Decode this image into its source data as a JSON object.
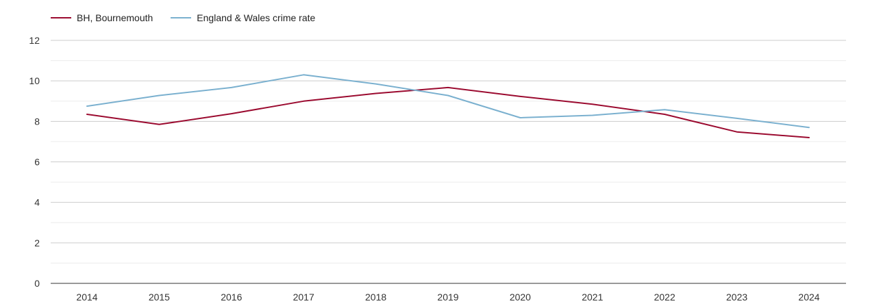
{
  "chart_data": {
    "type": "line",
    "title": "",
    "xlabel": "",
    "ylabel": "",
    "x": [
      "2014",
      "2015",
      "2016",
      "2017",
      "2018",
      "2019",
      "2020",
      "2021",
      "2022",
      "2023",
      "2024"
    ],
    "ylim": [
      0,
      12
    ],
    "yticks": [
      "0",
      "2",
      "4",
      "6",
      "8",
      "10",
      "12"
    ],
    "grid": true,
    "legend_position": "top-left",
    "series": [
      {
        "name": "BH, Bournemouth",
        "color": "#9b0a2f",
        "values": [
          8.35,
          7.85,
          8.38,
          9.0,
          9.38,
          9.67,
          9.23,
          8.85,
          8.35,
          7.48,
          7.2
        ]
      },
      {
        "name": "England & Wales crime rate",
        "color": "#7ab0cf",
        "values": [
          8.75,
          9.28,
          9.67,
          10.3,
          9.85,
          9.28,
          8.18,
          8.3,
          8.58,
          8.15,
          7.7
        ]
      }
    ]
  }
}
